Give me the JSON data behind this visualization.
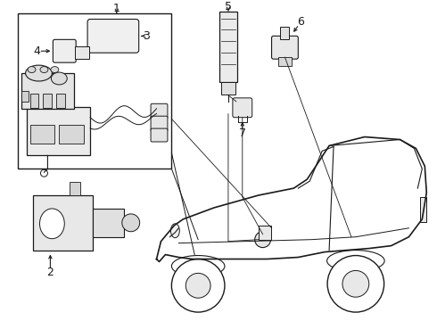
{
  "bg_color": "#ffffff",
  "line_color": "#1a1a1a",
  "fig_width": 4.9,
  "fig_height": 3.6,
  "dpi": 100,
  "label_fontsize": 9
}
